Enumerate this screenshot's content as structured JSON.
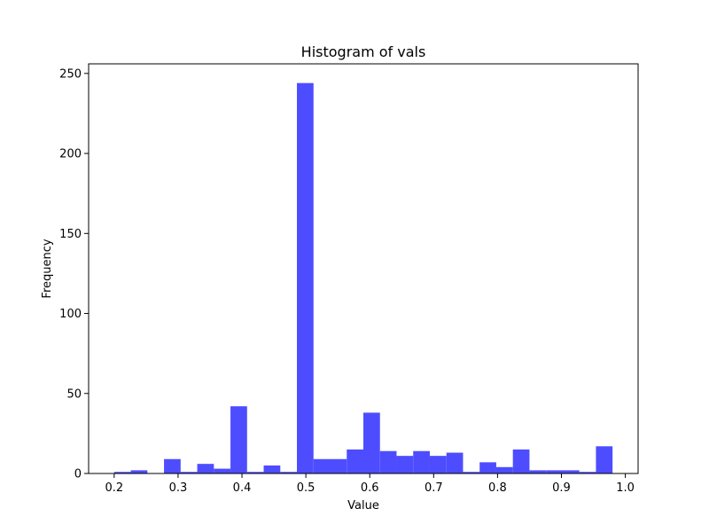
{
  "chart_data": {
    "type": "bar",
    "title": "Histogram of vals",
    "xlabel": "Value",
    "ylabel": "Frequency",
    "xlim": [
      0.16,
      1.02
    ],
    "ylim": [
      0,
      256
    ],
    "x_ticks": [
      0.2,
      0.3,
      0.4,
      0.5,
      0.6,
      0.7,
      0.8,
      0.9,
      1.0
    ],
    "x_tick_labels": [
      "0.2",
      "0.3",
      "0.4",
      "0.5",
      "0.6",
      "0.7",
      "0.8",
      "0.9",
      "1.0"
    ],
    "y_ticks": [
      0,
      50,
      100,
      150,
      200,
      250
    ],
    "y_tick_labels": [
      "0",
      "50",
      "100",
      "150",
      "200",
      "250"
    ],
    "bin_start": 0.2,
    "bin_width": 0.026,
    "values": [
      1,
      2,
      0,
      9,
      1,
      6,
      3,
      42,
      1,
      5,
      1,
      244,
      9,
      9,
      15,
      38,
      14,
      11,
      14,
      11,
      13,
      1,
      7,
      4,
      15,
      2,
      2,
      2,
      1,
      17
    ],
    "bar_color": "#4d4dff",
    "grid": false,
    "legend": false
  }
}
